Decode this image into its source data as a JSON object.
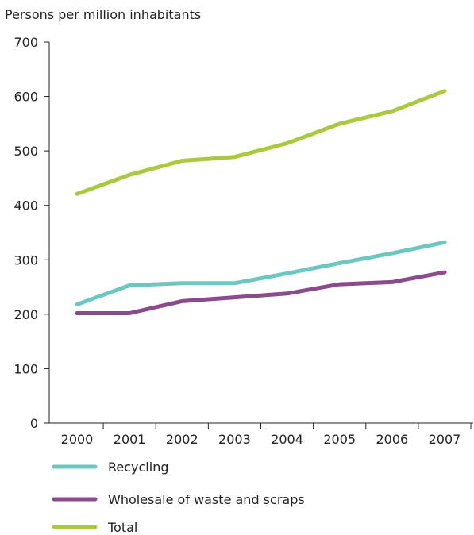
{
  "chart_data": {
    "type": "line",
    "ylabel": "Persons per million inhabitants",
    "xlabel": "",
    "categories": [
      "2000",
      "2001",
      "2002",
      "2003",
      "2004",
      "2005",
      "2006",
      "2007"
    ],
    "ylim": [
      0,
      700
    ],
    "yticks": [
      0,
      100,
      200,
      300,
      400,
      500,
      600,
      700
    ],
    "grid": false,
    "legend_position": "bottom-left",
    "series": [
      {
        "name": "Recycling",
        "color": "#6cc8bf",
        "values": [
          218,
          253,
          257,
          257,
          275,
          294,
          312,
          332
        ]
      },
      {
        "name": "Wholesale of waste and scraps",
        "color": "#8b4a8c",
        "values": [
          202,
          202,
          224,
          231,
          238,
          255,
          259,
          277
        ]
      },
      {
        "name": "Total",
        "color": "#abc940",
        "values": [
          421,
          456,
          482,
          489,
          514,
          550,
          573,
          610
        ]
      }
    ]
  }
}
